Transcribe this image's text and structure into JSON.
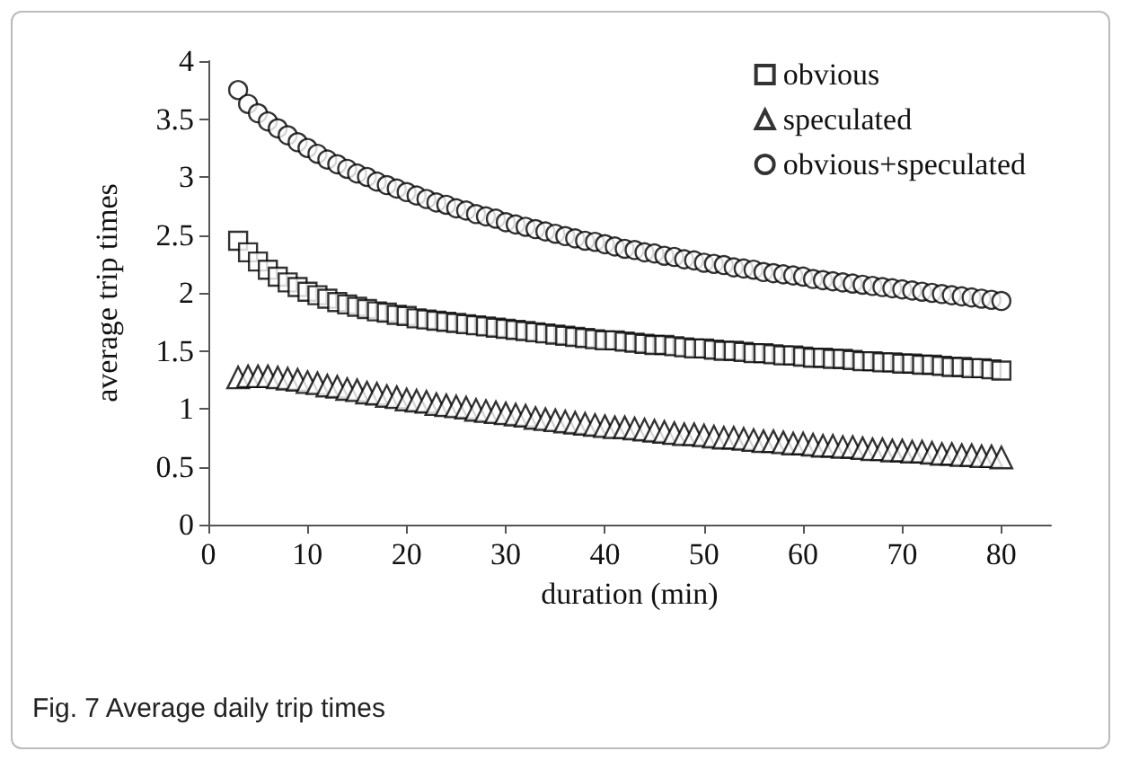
{
  "chart_data": {
    "type": "scatter",
    "xlabel": "duration (min)",
    "ylabel": "average trip times",
    "annotations": [
      "Fig. 7 Average daily trip times"
    ],
    "x": [
      3,
      4,
      5,
      6,
      7,
      8,
      9,
      10,
      11,
      12,
      13,
      14,
      15,
      16,
      17,
      18,
      19,
      20,
      21,
      22,
      23,
      24,
      25,
      26,
      27,
      28,
      29,
      30,
      31,
      32,
      33,
      34,
      35,
      36,
      37,
      38,
      39,
      40,
      41,
      42,
      43,
      44,
      45,
      46,
      47,
      48,
      49,
      50,
      51,
      52,
      53,
      54,
      55,
      56,
      57,
      58,
      59,
      60,
      61,
      62,
      63,
      64,
      65,
      66,
      67,
      68,
      69,
      70,
      71,
      72,
      73,
      74,
      75,
      76,
      77,
      78,
      79,
      80
    ],
    "series": [
      {
        "name": "obvious",
        "color": "#000000",
        "marker": "square",
        "values": [
          2.45,
          2.35,
          2.27,
          2.2,
          2.14,
          2.09,
          2.05,
          2.01,
          1.98,
          1.95,
          1.92,
          1.9,
          1.88,
          1.86,
          1.84,
          1.83,
          1.81,
          1.8,
          1.78,
          1.77,
          1.76,
          1.75,
          1.74,
          1.73,
          1.72,
          1.71,
          1.7,
          1.69,
          1.68,
          1.67,
          1.66,
          1.65,
          1.64,
          1.63,
          1.62,
          1.61,
          1.6,
          1.59,
          1.59,
          1.58,
          1.57,
          1.56,
          1.55,
          1.55,
          1.54,
          1.53,
          1.52,
          1.52,
          1.51,
          1.5,
          1.5,
          1.49,
          1.48,
          1.48,
          1.47,
          1.46,
          1.46,
          1.45,
          1.44,
          1.44,
          1.43,
          1.43,
          1.42,
          1.41,
          1.41,
          1.4,
          1.4,
          1.39,
          1.39,
          1.38,
          1.38,
          1.37,
          1.36,
          1.36,
          1.35,
          1.35,
          1.34,
          1.33
        ]
      },
      {
        "name": "speculated",
        "color": "#000000",
        "marker": "triangle",
        "values": [
          1.27,
          1.28,
          1.28,
          1.28,
          1.27,
          1.26,
          1.25,
          1.23,
          1.22,
          1.2,
          1.19,
          1.17,
          1.16,
          1.14,
          1.13,
          1.11,
          1.1,
          1.08,
          1.07,
          1.06,
          1.04,
          1.03,
          1.02,
          1.01,
          0.99,
          0.98,
          0.97,
          0.96,
          0.95,
          0.94,
          0.92,
          0.91,
          0.9,
          0.89,
          0.88,
          0.87,
          0.86,
          0.85,
          0.84,
          0.84,
          0.83,
          0.82,
          0.81,
          0.8,
          0.79,
          0.78,
          0.78,
          0.77,
          0.76,
          0.75,
          0.75,
          0.74,
          0.73,
          0.72,
          0.72,
          0.71,
          0.7,
          0.7,
          0.69,
          0.68,
          0.68,
          0.67,
          0.67,
          0.66,
          0.65,
          0.65,
          0.64,
          0.64,
          0.63,
          0.63,
          0.62,
          0.61,
          0.61,
          0.6,
          0.6,
          0.59,
          0.59,
          0.58
        ]
      },
      {
        "name": "obvious+speculated",
        "color": "#000000",
        "marker": "circle",
        "values": [
          3.75,
          3.63,
          3.55,
          3.48,
          3.42,
          3.36,
          3.3,
          3.25,
          3.2,
          3.15,
          3.11,
          3.07,
          3.03,
          3.0,
          2.96,
          2.93,
          2.9,
          2.87,
          2.84,
          2.81,
          2.78,
          2.76,
          2.73,
          2.71,
          2.68,
          2.66,
          2.64,
          2.61,
          2.59,
          2.57,
          2.55,
          2.53,
          2.51,
          2.49,
          2.47,
          2.45,
          2.44,
          2.42,
          2.4,
          2.38,
          2.37,
          2.35,
          2.34,
          2.32,
          2.31,
          2.29,
          2.28,
          2.26,
          2.25,
          2.24,
          2.22,
          2.21,
          2.2,
          2.18,
          2.17,
          2.16,
          2.15,
          2.14,
          2.12,
          2.11,
          2.1,
          2.09,
          2.08,
          2.07,
          2.06,
          2.05,
          2.04,
          2.03,
          2.02,
          2.01,
          2.0,
          1.99,
          1.98,
          1.97,
          1.96,
          1.95,
          1.94,
          1.93
        ]
      }
    ],
    "xlim": [
      0,
      85
    ],
    "xticks": [
      0,
      10,
      20,
      30,
      40,
      50,
      60,
      70,
      80
    ],
    "ylim": [
      0,
      4
    ],
    "yticks": [
      0,
      0.5,
      1,
      1.5,
      2,
      2.5,
      3,
      3.5,
      4
    ],
    "grid": false,
    "legend": "top right"
  }
}
